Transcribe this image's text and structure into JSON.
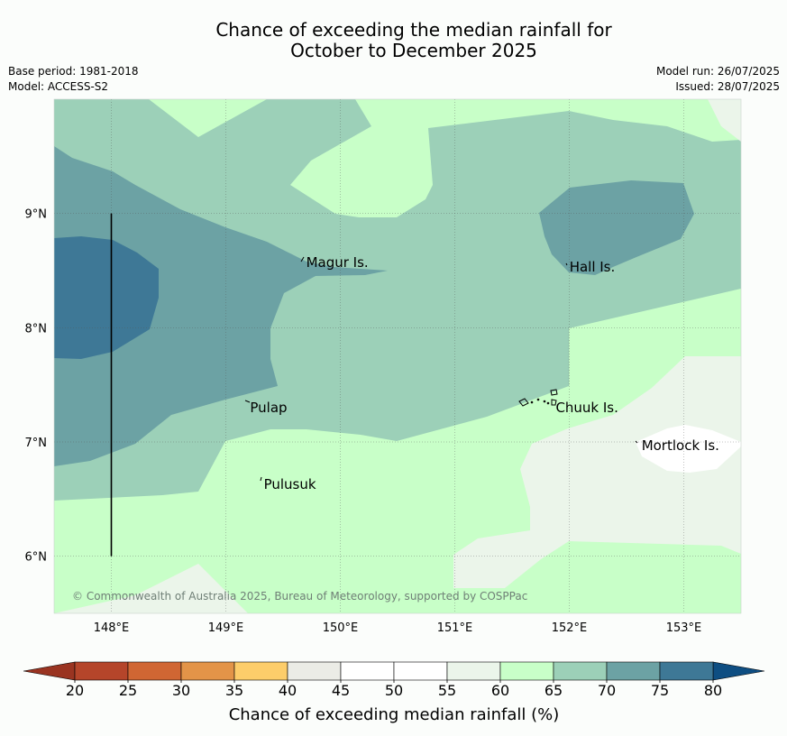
{
  "title": {
    "line1": "Chance of exceeding the median rainfall for",
    "line2": "October to December 2025"
  },
  "meta": {
    "base_period": "Base period: 1981-2018",
    "model": "Model: ACCESS-S2",
    "model_run": "Model run: 26/07/2025",
    "issued": "Issued: 28/07/2025"
  },
  "map": {
    "lon_range": [
      147.5,
      153.5
    ],
    "lat_range": [
      5.5,
      10.0
    ],
    "lon_ticks": [
      {
        "value": 148,
        "label": "148°E"
      },
      {
        "value": 149,
        "label": "149°E"
      },
      {
        "value": 150,
        "label": "150°E"
      },
      {
        "value": 151,
        "label": "151°E"
      },
      {
        "value": 152,
        "label": "152°E"
      },
      {
        "value": 153,
        "label": "153°E"
      }
    ],
    "lat_ticks": [
      {
        "value": 9,
        "label": "9°N"
      },
      {
        "value": 8,
        "label": "8°N"
      },
      {
        "value": 7,
        "label": "7°N"
      },
      {
        "value": 6,
        "label": "6°N"
      }
    ],
    "places": [
      {
        "name": "Magur Is.",
        "lon": 149.67,
        "lat": 8.57
      },
      {
        "name": "Hall Is.",
        "lon": 151.97,
        "lat": 8.53
      },
      {
        "name": "Pulap",
        "lon": 149.18,
        "lat": 7.3
      },
      {
        "name": "Chuuk Is.",
        "lon": 151.85,
        "lat": 7.3
      },
      {
        "name": "Mortlock Is.",
        "lon": 152.6,
        "lat": 6.97
      },
      {
        "name": "Pulusuk",
        "lon": 149.3,
        "lat": 6.63
      }
    ],
    "boundary_line": {
      "lon": 148.0,
      "lat_from": 6.0,
      "lat_to": 9.0
    },
    "copyright": "© Commonwealth of Australia 2025, Bureau of Meteorology, supported by COSPPac"
  },
  "colorbar": {
    "label": "Chance of exceeding median rainfall (%)",
    "ticks": [
      "20",
      "25",
      "30",
      "35",
      "40",
      "45",
      "50",
      "55",
      "60",
      "65",
      "70",
      "75",
      "80"
    ],
    "colors": [
      "#b5452a",
      "#d06633",
      "#e39448",
      "#fdcd6a",
      "#ebece6",
      "#ffffff",
      "#ffffff",
      "#ebf5ea",
      "#c8ffc8",
      "#9cd0b8",
      "#6ca2a4",
      "#3e7896"
    ],
    "under_color": "#9a3421",
    "over_color": "#0e4e82"
  },
  "legend_colors": {
    "c55_60": "#ebf5ea",
    "c60_65": "#c8ffc8",
    "c65_70": "#9cd0b8",
    "c70_75": "#6ca2a4",
    "c75_80": "#3e7896",
    "c45_55": "#ffffff"
  }
}
